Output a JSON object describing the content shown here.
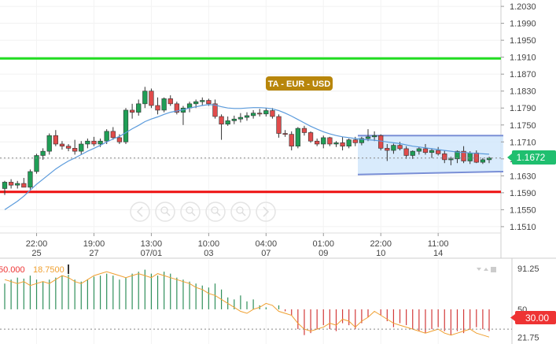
{
  "chart_data": [
    {
      "type": "candlestick",
      "annotation_label": "TA - EUR - USD",
      "y_ticks": [
        "1.2030",
        "1.1990",
        "1.1950",
        "1.1910",
        "1.1870",
        "1.1830",
        "1.1790",
        "1.1750",
        "1.1710",
        "1.1670",
        "1.1630",
        "1.1590",
        "1.1550",
        "1.1510"
      ],
      "ylim": [
        1.1495,
        1.2045
      ],
      "x_ticks": [
        {
          "time": "22:00",
          "date": "25"
        },
        {
          "time": "19:00",
          "date": "27"
        },
        {
          "time": "13:00",
          "date": "07/01"
        },
        {
          "time": "10:00",
          "date": "03"
        },
        {
          "time": "04:00",
          "date": "07"
        },
        {
          "time": "01:00",
          "date": "09"
        },
        {
          "time": "22:00",
          "date": "10"
        },
        {
          "time": "11:00",
          "date": "14"
        }
      ],
      "last_price": "1.1672",
      "horizontal_lines": [
        {
          "price": 1.1907,
          "color": "#22dd22"
        },
        {
          "price": 1.1592,
          "color": "#ee1111"
        }
      ],
      "channel": {
        "start_top": 1.1725,
        "end_top": 1.1725,
        "start_bottom": 1.1633,
        "end_bottom": 1.164
      },
      "candles": [
        [
          1.16,
          1.1618,
          1.1585,
          1.1615
        ],
        [
          1.1615,
          1.1622,
          1.16,
          1.1608
        ],
        [
          1.1608,
          1.1618,
          1.16,
          1.1612
        ],
        [
          1.1612,
          1.1625,
          1.1605,
          1.1603
        ],
        [
          1.1603,
          1.1645,
          1.1598,
          1.164
        ],
        [
          1.164,
          1.1682,
          1.1635,
          1.1678
        ],
        [
          1.1678,
          1.1695,
          1.1668,
          1.1688
        ],
        [
          1.1688,
          1.173,
          1.168,
          1.1725
        ],
        [
          1.1725,
          1.1738,
          1.17,
          1.1705
        ],
        [
          1.1705,
          1.1712,
          1.1692,
          1.17
        ],
        [
          1.17,
          1.1705,
          1.1688,
          1.1695
        ],
        [
          1.1695,
          1.1715,
          1.168,
          1.1688
        ],
        [
          1.1688,
          1.1712,
          1.168,
          1.1705
        ],
        [
          1.1705,
          1.1718,
          1.1695,
          1.1712
        ],
        [
          1.1712,
          1.1722,
          1.17,
          1.1705
        ],
        [
          1.1705,
          1.1718,
          1.1698,
          1.1712
        ],
        [
          1.1712,
          1.174,
          1.1705,
          1.1735
        ],
        [
          1.1735,
          1.1745,
          1.1715,
          1.172
        ],
        [
          1.172,
          1.1728,
          1.1705,
          1.171
        ],
        [
          1.171,
          1.179,
          1.1705,
          1.1785
        ],
        [
          1.1785,
          1.18,
          1.1765,
          1.178
        ],
        [
          1.178,
          1.181,
          1.1772,
          1.18
        ],
        [
          1.18,
          1.184,
          1.179,
          1.183
        ],
        [
          1.183,
          1.1836,
          1.179,
          1.1796
        ],
        [
          1.1796,
          1.1815,
          1.1775,
          1.1785
        ],
        [
          1.1785,
          1.1815,
          1.178,
          1.1812
        ],
        [
          1.1812,
          1.182,
          1.1795,
          1.18
        ],
        [
          1.18,
          1.1805,
          1.1775,
          1.178
        ],
        [
          1.178,
          1.1795,
          1.175,
          1.179
        ],
        [
          1.179,
          1.1805,
          1.178,
          1.18
        ],
        [
          1.18,
          1.181,
          1.179,
          1.1805
        ],
        [
          1.1805,
          1.1815,
          1.1795,
          1.1808
        ],
        [
          1.1808,
          1.1812,
          1.1795,
          1.18
        ],
        [
          1.18,
          1.181,
          1.1765,
          1.177
        ],
        [
          1.177,
          1.1775,
          1.1715,
          1.1752
        ],
        [
          1.1752,
          1.177,
          1.1748,
          1.176
        ],
        [
          1.176,
          1.1772,
          1.1752,
          1.1764
        ],
        [
          1.1764,
          1.1778,
          1.1756,
          1.1768
        ],
        [
          1.1768,
          1.178,
          1.176,
          1.1772
        ],
        [
          1.1772,
          1.1785,
          1.1765,
          1.1778
        ],
        [
          1.1778,
          1.1788,
          1.177,
          1.1776
        ],
        [
          1.1776,
          1.179,
          1.177,
          1.1784
        ],
        [
          1.1784,
          1.179,
          1.1765,
          1.177
        ],
        [
          1.177,
          1.1775,
          1.172,
          1.173
        ],
        [
          1.173,
          1.1738,
          1.1722,
          1.1728
        ],
        [
          1.1728,
          1.1735,
          1.169,
          1.17
        ],
        [
          1.17,
          1.1745,
          1.1695,
          1.1742
        ],
        [
          1.1742,
          1.1748,
          1.1725,
          1.1732
        ],
        [
          1.1732,
          1.1735,
          1.1708,
          1.1712
        ],
        [
          1.1712,
          1.1718,
          1.17,
          1.1705
        ],
        [
          1.1705,
          1.1725,
          1.1695,
          1.172
        ],
        [
          1.172,
          1.1722,
          1.17,
          1.1705
        ],
        [
          1.1705,
          1.1712,
          1.1698,
          1.1708
        ],
        [
          1.1708,
          1.1722,
          1.169,
          1.17
        ],
        [
          1.17,
          1.1718,
          1.1695,
          1.1715
        ],
        [
          1.1715,
          1.1722,
          1.17,
          1.1708
        ],
        [
          1.1708,
          1.1722,
          1.1702,
          1.1718
        ],
        [
          1.1718,
          1.174,
          1.1712,
          1.1722
        ],
        [
          1.1722,
          1.1735,
          1.1712,
          1.1725
        ],
        [
          1.1725,
          1.1728,
          1.169,
          1.1695
        ],
        [
          1.1695,
          1.1705,
          1.1665,
          1.169
        ],
        [
          1.169,
          1.1706,
          1.1682,
          1.1702
        ],
        [
          1.1702,
          1.171,
          1.169,
          1.1694
        ],
        [
          1.1694,
          1.17,
          1.167,
          1.1678
        ],
        [
          1.1678,
          1.169,
          1.167,
          1.1688
        ],
        [
          1.1688,
          1.1698,
          1.168,
          1.1694
        ],
        [
          1.1694,
          1.1705,
          1.168,
          1.1685
        ],
        [
          1.1685,
          1.1695,
          1.1672,
          1.169
        ],
        [
          1.169,
          1.1698,
          1.1678,
          1.1682
        ],
        [
          1.1682,
          1.169,
          1.166,
          1.1668
        ],
        [
          1.1668,
          1.1675,
          1.1655,
          1.167
        ],
        [
          1.167,
          1.169,
          1.166,
          1.1688
        ],
        [
          1.1688,
          1.17,
          1.166,
          1.1665
        ],
        [
          1.1665,
          1.1688,
          1.1658,
          1.1684
        ],
        [
          1.1684,
          1.169,
          1.166,
          1.1662
        ],
        [
          1.1662,
          1.1672,
          1.1658,
          1.1668
        ],
        [
          1.1668,
          1.1675,
          1.166,
          1.1672
        ]
      ],
      "ma": [
        1.155,
        1.156,
        1.157,
        1.1582,
        1.1596,
        1.161,
        1.1622,
        1.1634,
        1.1646,
        1.1656,
        1.1665,
        1.1672,
        1.168,
        1.1688,
        1.1695,
        1.1702,
        1.171,
        1.1717,
        1.1723,
        1.1732,
        1.1741,
        1.1749,
        1.1758,
        1.1764,
        1.1769,
        1.1775,
        1.178,
        1.1783,
        1.1786,
        1.179,
        1.1793,
        1.1796,
        1.1798,
        1.1797,
        1.1793,
        1.179,
        1.1789,
        1.1789,
        1.179,
        1.1791,
        1.1791,
        1.179,
        1.1788,
        1.1784,
        1.1778,
        1.1771,
        1.1763,
        1.1755,
        1.1747,
        1.174,
        1.1734,
        1.1729,
        1.1725,
        1.1722,
        1.172,
        1.1718,
        1.1716,
        1.1715,
        1.1714,
        1.1712,
        1.171,
        1.1708,
        1.1706,
        1.1703,
        1.17,
        1.1698,
        1.1696,
        1.1694,
        1.1692,
        1.169,
        1.1688,
        1.1686,
        1.1685,
        1.1684,
        1.1683,
        1.1682,
        1.1681
      ]
    },
    {
      "type": "indicator",
      "label_upper": "50.000",
      "label_lower": "18.7500",
      "y_ticks": [
        "91.25",
        "50",
        "21.75"
      ],
      "level_label": "30.00",
      "ylim": [
        15,
        100
      ],
      "baseline": 50,
      "level": 30,
      "histogram": [
        76,
        80,
        82,
        81,
        84,
        80,
        78,
        80,
        82,
        84,
        85,
        80,
        78,
        80,
        83,
        84,
        86,
        84,
        80,
        82,
        86,
        88,
        90,
        86,
        84,
        88,
        86,
        82,
        80,
        78,
        76,
        74,
        72,
        76,
        70,
        62,
        60,
        64,
        58,
        60,
        54,
        52,
        50,
        54,
        48,
        44,
        30,
        24,
        26,
        30,
        34,
        30,
        28,
        36,
        34,
        30,
        36,
        42,
        50,
        44,
        38,
        32,
        36,
        34,
        30,
        28,
        26,
        30,
        32,
        28,
        24,
        28,
        26,
        30,
        32,
        30,
        28
      ],
      "line": [
        80,
        78,
        76,
        78,
        74,
        76,
        78,
        76,
        80,
        84,
        82,
        78,
        76,
        80,
        84,
        86,
        88,
        86,
        84,
        82,
        84,
        86,
        84,
        82,
        86,
        84,
        82,
        80,
        78,
        76,
        72,
        70,
        66,
        64,
        60,
        56,
        52,
        48,
        46,
        50,
        52,
        56,
        54,
        48,
        46,
        44,
        36,
        30,
        28,
        30,
        32,
        36,
        34,
        40,
        38,
        32,
        38,
        42,
        48,
        44,
        40,
        36,
        34,
        32,
        30,
        28,
        26,
        28,
        30,
        26,
        24,
        26,
        28,
        30,
        26,
        24,
        22
      ]
    }
  ],
  "colors": {
    "bull": "#1f9e56",
    "bear": "#e04b4b",
    "ma_line": "#5b9bdc",
    "last_price_badge": "#1fbf6f",
    "label_badge": "#b8860b",
    "indicator_line": "#f0a030",
    "level_badge": "#ee3333"
  },
  "nav_icons": [
    "scroll-left-icon",
    "zoom-in-icon",
    "zoom-reset-icon",
    "zoom-out-icon",
    "zoom-fit-icon",
    "scroll-right-icon"
  ]
}
